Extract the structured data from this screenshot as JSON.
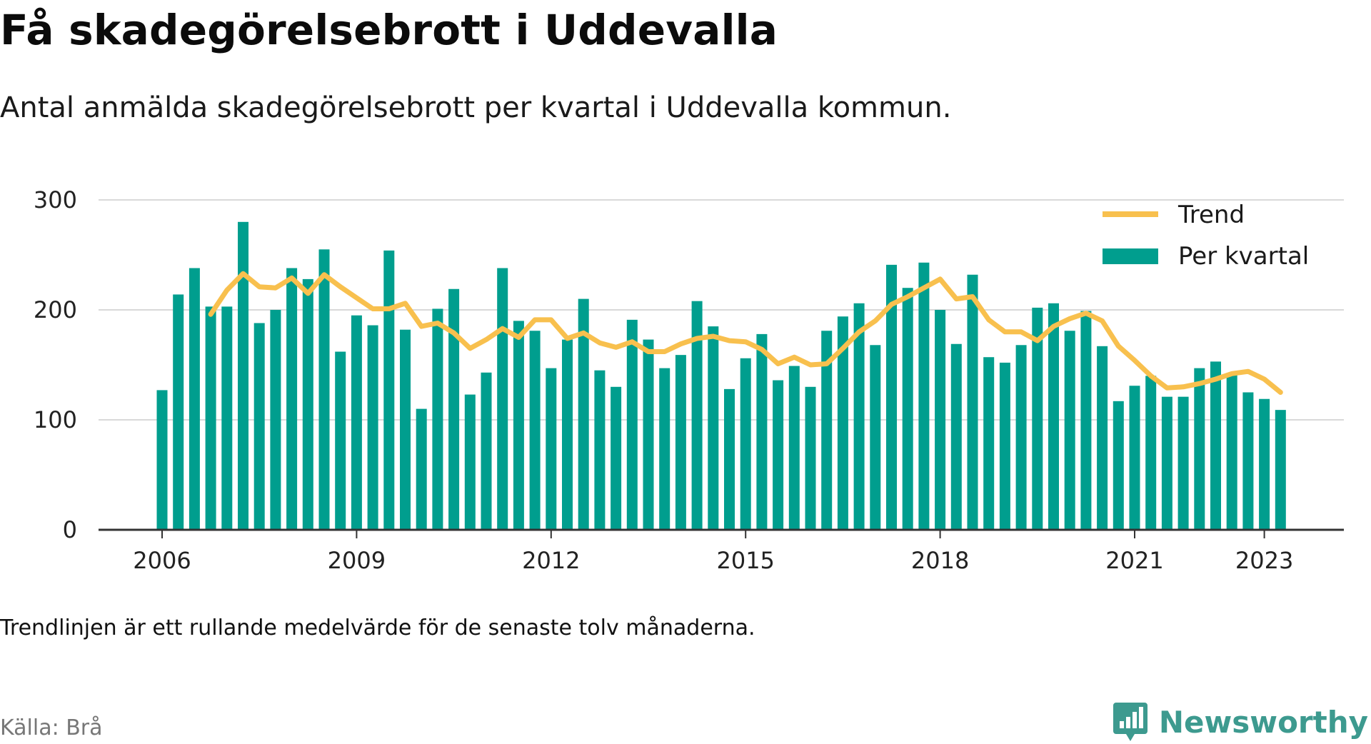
{
  "header": {
    "title": "Få skadegörelsebrott i Uddevalla",
    "subtitle": "Antal anmälda skadegörelsebrott per kvartal i Uddevalla kommun."
  },
  "footer": {
    "note": "Trendlinjen är ett rullande medelvärde för de senaste tolv månaderna.",
    "source": "Källa: Brå",
    "brand": "Newsworthy"
  },
  "colors": {
    "bar": "#009e8e",
    "trend": "#f8c04e",
    "grid": "#d9d9d9",
    "axis": "#333333",
    "brand": "#3d9a8f"
  },
  "chart_data": {
    "type": "bar",
    "ylim": [
      0,
      300
    ],
    "yticks": [
      "0",
      "100",
      "200",
      "300"
    ],
    "xticks": [
      "2006",
      "2009",
      "2012",
      "2015",
      "2018",
      "2021",
      "2023"
    ],
    "legend_position": "top-right",
    "grid": true,
    "start_year": 2006,
    "start_quarter": 1,
    "series": [
      {
        "name": "Per kvartal",
        "type": "bar",
        "values": [
          127,
          214,
          238,
          203,
          203,
          280,
          188,
          200,
          238,
          228,
          255,
          162,
          195,
          186,
          254,
          182,
          110,
          201,
          219,
          123,
          143,
          238,
          190,
          181,
          147,
          173,
          210,
          145,
          130,
          191,
          173,
          147,
          159,
          208,
          185,
          128,
          156,
          178,
          136,
          149,
          130,
          181,
          194,
          206,
          168,
          241,
          220,
          243,
          200,
          169,
          232,
          157,
          152,
          168,
          202,
          206,
          181,
          199,
          167,
          117,
          131,
          140,
          121,
          121,
          147,
          153,
          141,
          125,
          119,
          109
        ]
      },
      {
        "name": "Trend",
        "type": "line",
        "values": [
          null,
          null,
          null,
          196,
          218,
          233,
          221,
          220,
          229,
          215,
          232,
          221,
          211,
          201,
          201,
          206,
          185,
          188,
          179,
          165,
          173,
          183,
          175,
          191,
          191,
          174,
          179,
          170,
          166,
          171,
          162,
          162,
          169,
          174,
          176,
          172,
          171,
          164,
          151,
          157,
          150,
          151,
          165,
          180,
          190,
          205,
          212,
          220,
          228,
          210,
          212,
          191,
          180,
          180,
          172,
          185,
          192,
          197,
          190,
          167,
          154,
          140,
          129,
          130,
          133,
          137,
          142,
          144,
          137,
          125
        ]
      }
    ]
  }
}
